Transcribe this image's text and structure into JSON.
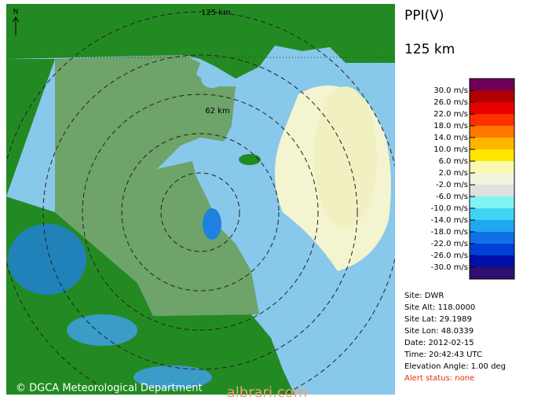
{
  "map": {
    "north_label": "N",
    "ring_labels": [
      "125 km",
      "62 km"
    ]
  },
  "panel": {
    "title": "PPI(V)",
    "range": "125 km",
    "legend": {
      "labels": [
        "30.0 m/s",
        "26.0 m/s",
        "22.0 m/s",
        "18.0 m/s",
        "14.0 m/s",
        "10.0 m/s",
        "6.0 m/s",
        "2.0 m/s",
        "-2.0 m/s",
        "-6.0 m/s",
        "-10.0 m/s",
        "-14.0 m/s",
        "-18.0 m/s",
        "-22.0 m/s",
        "-26.0 m/s",
        "-30.0 m/s"
      ],
      "colors": [
        "#6e005a",
        "#b00000",
        "#e80000",
        "#ff3000",
        "#ff7800",
        "#ffb400",
        "#ffe600",
        "#f8f8b0",
        "#f4f4dc",
        "#e0e0e0",
        "#80f4f4",
        "#40d4f4",
        "#20a8f0",
        "#1070e8",
        "#0040d8",
        "#0010a8",
        "#30106e"
      ]
    },
    "site_info": [
      "Site: DWR",
      "Site Alt: 118.0000",
      "Site Lat: 29.1989",
      "Site Lon: 48.0339",
      "Date: 2012-02-15",
      "Time: 20:42:43 UTC",
      "Elevation Angle: 1.00 deg"
    ],
    "alert": "Alert status: none"
  },
  "footer": {
    "copyright": "© DGCA Meteorological Department",
    "watermark": "albrari.com"
  }
}
